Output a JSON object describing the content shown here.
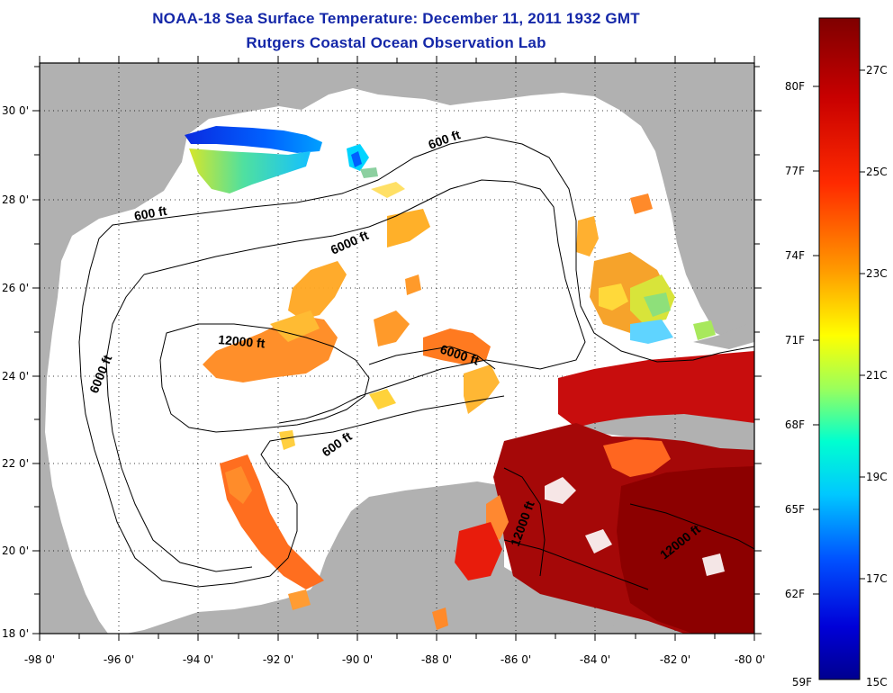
{
  "title": {
    "line1": "NOAA-18 Sea Surface Temperature:  December 11, 2011 1932 GMT",
    "line2": "Rutgers Coastal Ocean Observation Lab"
  },
  "map": {
    "x_ticks": [
      "-98 0'",
      "-96 0'",
      "-94 0'",
      "-92 0'",
      "-90 0'",
      "-88 0'",
      "-86 0'",
      "-84 0'",
      "-82 0'",
      "-80 0'"
    ],
    "y_ticks": [
      "30 0'",
      "28 0'",
      "26 0'",
      "24 0'",
      "22 0'",
      "20 0'",
      "18 0'"
    ],
    "contours": [
      {
        "label": "600 ft",
        "name": "contour-label-600ft-north"
      },
      {
        "label": "600 ft",
        "name": "contour-label-600ft-west"
      },
      {
        "label": "6000 ft",
        "name": "contour-label-6000ft-west"
      },
      {
        "label": "6000 ft",
        "name": "contour-label-6000ft-center"
      },
      {
        "label": "12000 ft",
        "name": "contour-label-12000ft"
      },
      {
        "label": "6000 ft",
        "name": "contour-label-6000ft-east"
      },
      {
        "label": "600 ft",
        "name": "contour-label-600ft-south"
      },
      {
        "label": "12000 ft",
        "name": "contour-label-12000ft-caribbean"
      },
      {
        "label": "12000 ft",
        "name": "contour-label-12000ft-southeast"
      }
    ],
    "colors": {
      "land": "#b1b1b1",
      "water": "#ffffff",
      "title": "#1427a8"
    }
  },
  "colorbar": {
    "fahrenheit": [
      "80F",
      "77F",
      "74F",
      "71F",
      "68F",
      "65F",
      "62F",
      "59F"
    ],
    "celsius": [
      "27C",
      "25C",
      "23C",
      "21C",
      "19C",
      "17C",
      "15C"
    ]
  }
}
